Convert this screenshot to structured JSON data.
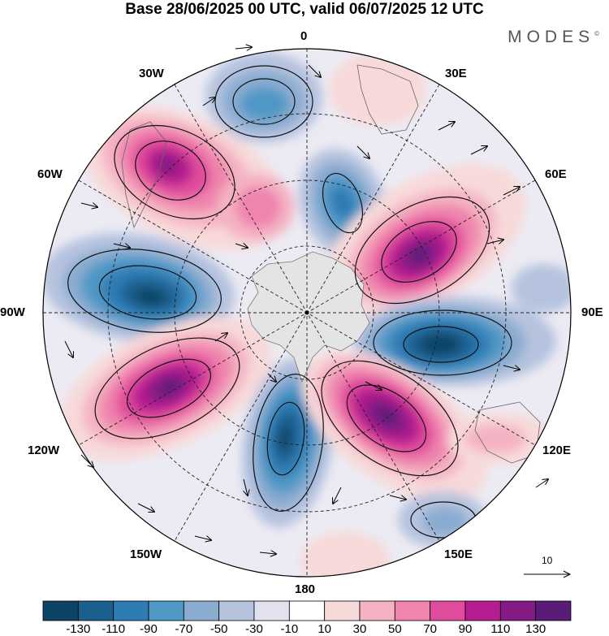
{
  "title": "Base 28/06/2025 00 UTC, valid 06/07/2025 12 UTC",
  "brand": "MODES",
  "brand_mark": "©",
  "longitude_labels": {
    "n0": "0",
    "e30": "30E",
    "e60": "60E",
    "e90": "90E",
    "e120": "120E",
    "e150": "150E",
    "s180": "180",
    "w150": "150W",
    "w120": "120W",
    "w90": "90W",
    "w60": "60W",
    "w30": "30W"
  },
  "reference_vector": "10",
  "colorbar": {
    "ticks": [
      "-130",
      "-110",
      "-90",
      "-70",
      "-50",
      "-30",
      "-10",
      "10",
      "30",
      "50",
      "70",
      "90",
      "110",
      "130"
    ],
    "colors": [
      "#0d4466",
      "#1a5f8e",
      "#2f7cb3",
      "#4f98c6",
      "#8aacd0",
      "#b6c3df",
      "#e2e2ef",
      "#ffffff",
      "#f8d9d9",
      "#f4b3c3",
      "#ef84ad",
      "#e04c9c",
      "#b51e8e",
      "#851a86",
      "#5a1a78"
    ]
  },
  "anomalies": [
    {
      "name": "low-north",
      "sign": "negative",
      "level": -70
    },
    {
      "name": "high-nw",
      "sign": "positive",
      "level": 110
    },
    {
      "name": "low-n-center",
      "sign": "negative",
      "level": -90
    },
    {
      "name": "high-ne",
      "sign": "positive",
      "level": 130
    },
    {
      "name": "low-west",
      "sign": "negative",
      "level": -110
    },
    {
      "name": "low-east",
      "sign": "negative",
      "level": -110
    },
    {
      "name": "high-sw",
      "sign": "positive",
      "level": 130
    },
    {
      "name": "low-south",
      "sign": "negative",
      "level": -110
    },
    {
      "name": "high-se",
      "sign": "positive",
      "level": 130
    },
    {
      "name": "low-far-se",
      "sign": "negative",
      "level": -50
    },
    {
      "name": "high-ne-weak",
      "sign": "positive",
      "level": 30
    },
    {
      "name": "high-south-weak",
      "sign": "positive",
      "level": 30
    }
  ]
}
